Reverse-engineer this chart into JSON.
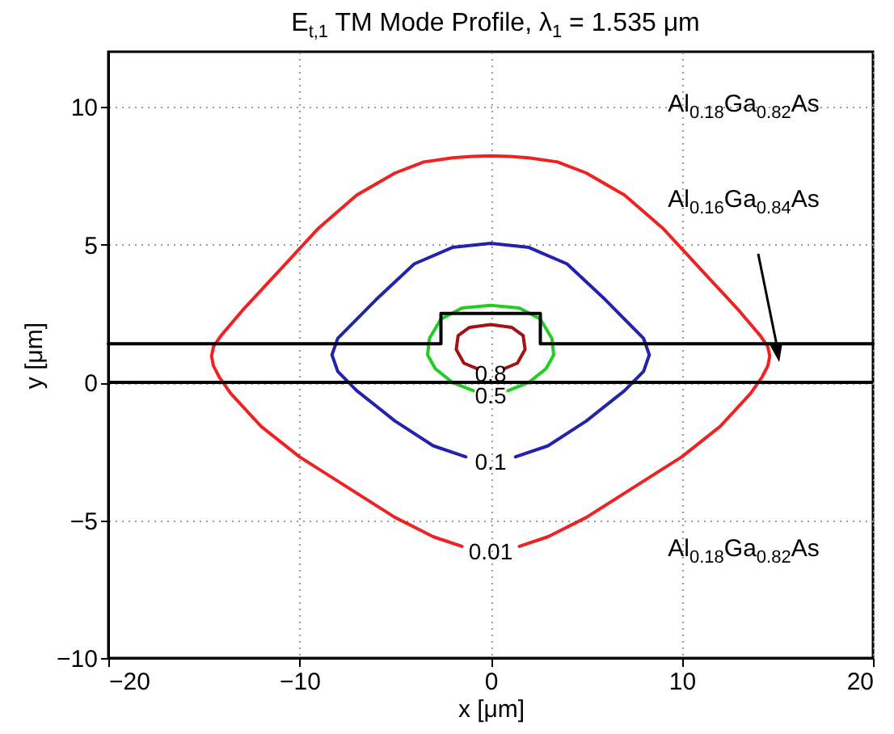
{
  "chart_data": {
    "type": "line",
    "title": "E$_{t,1}$ TM Mode Profile, λ$_{1}$ = 1.535 μm",
    "xlabel": "x [μm]",
    "ylabel": "y [μm]",
    "xlim": [
      -20,
      20
    ],
    "xticks": [
      -20,
      -10,
      0,
      10,
      20
    ],
    "ylim": [
      -10,
      12
    ],
    "yticks": [
      -10,
      -5,
      0,
      5,
      10
    ],
    "grid": true,
    "series": [
      {
        "name": "0.01",
        "color": "#ee2222",
        "x": [
          1.5,
          3,
          5,
          7.5,
          10,
          12,
          13.6,
          14.2,
          14.5,
          14.6,
          14.5,
          14.1,
          13,
          11,
          9,
          7,
          5,
          3.5,
          2,
          1,
          0,
          -1,
          -2,
          -3.5,
          -5,
          -7,
          -9,
          -11,
          -13,
          -14.1,
          -14.5,
          -14.6,
          -14.5,
          -14.2,
          -13.6,
          -12,
          -10,
          -7.5,
          -5,
          -3,
          -1.5
        ],
        "values": [
          -5.95,
          -5.6,
          -4.9,
          -3.8,
          -2.7,
          -1.6,
          -0.4,
          0.2,
          0.6,
          0.95,
          1.3,
          1.7,
          2.6,
          4.1,
          5.6,
          6.8,
          7.6,
          8.0,
          8.15,
          8.2,
          8.22,
          8.2,
          8.15,
          8.0,
          7.6,
          6.8,
          5.6,
          4.1,
          2.6,
          1.7,
          1.3,
          0.95,
          0.6,
          0.2,
          -0.4,
          -1.6,
          -2.7,
          -3.8,
          -4.9,
          -5.6,
          -5.95
        ]
      },
      {
        "name": "0.1",
        "color": "#2222aa",
        "x": [
          1.3,
          3,
          5,
          7,
          8.0,
          8.3,
          8.0,
          6,
          4,
          2,
          0,
          -2,
          -4,
          -6,
          -8.0,
          -8.3,
          -8.0,
          -7,
          -5,
          -3,
          -1.3
        ],
        "values": [
          -2.7,
          -2.3,
          -1.4,
          -0.3,
          0.4,
          1.0,
          1.6,
          3.0,
          4.3,
          4.9,
          5.05,
          4.9,
          4.3,
          3.0,
          1.6,
          1.0,
          0.4,
          -0.3,
          -1.4,
          -2.3,
          -2.7
        ]
      },
      {
        "name": "0.5",
        "color": "#22cc22",
        "x": [
          0.9,
          2,
          2.9,
          3.3,
          3.2,
          2.6,
          1.5,
          0,
          -1.5,
          -2.6,
          -3.2,
          -3.3,
          -2.9,
          -2,
          -0.9
        ],
        "values": [
          -0.3,
          0.0,
          0.5,
          1.0,
          1.6,
          2.3,
          2.7,
          2.8,
          2.7,
          2.3,
          1.6,
          1.0,
          0.5,
          0.0,
          -0.3
        ]
      },
      {
        "name": "0.8",
        "color": "#a01414",
        "x": [
          0.7,
          1.4,
          1.8,
          1.7,
          1.1,
          0,
          -1.1,
          -1.7,
          -1.8,
          -1.4,
          -0.7
        ],
        "values": [
          0.5,
          0.7,
          1.2,
          1.7,
          2.0,
          2.1,
          2.0,
          1.7,
          1.2,
          0.7,
          0.5
        ]
      },
      {
        "color": "#000000",
        "x": [
          -20,
          -2.6,
          -2.6,
          2.6,
          2.6,
          20
        ],
        "values": [
          1.4,
          1.4,
          2.5,
          2.5,
          1.4,
          1.4
        ]
      }
    ],
    "ref_lines": [
      {
        "axis": "y",
        "value": 0,
        "color": "#000000"
      }
    ],
    "annotations": [
      "Al$_{0.18}$Ga$_{0.82}$As",
      "Al$_{0.16}$Ga$_{0.84}$As",
      "Al$_{0.18}$Ga$_{0.82}$As"
    ]
  }
}
